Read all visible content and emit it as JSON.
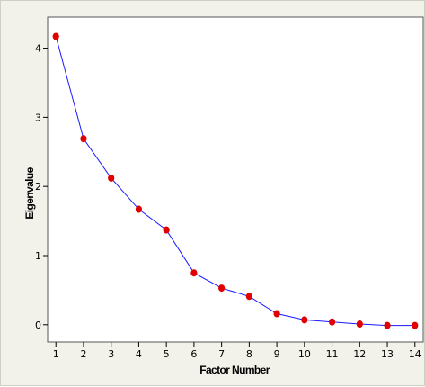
{
  "chart_data": {
    "type": "line",
    "title": "",
    "xlabel": "Factor Number",
    "ylabel": "Eigenvalue",
    "x": [
      1,
      2,
      3,
      4,
      5,
      6,
      7,
      8,
      9,
      10,
      11,
      12,
      13,
      14
    ],
    "series": [
      {
        "values": [
          4.17,
          2.69,
          2.12,
          1.67,
          1.37,
          0.75,
          0.53,
          0.41,
          0.16,
          0.07,
          0.04,
          0.01,
          -0.01,
          -0.01
        ]
      }
    ],
    "xlim": [
      0.7,
      14.3
    ],
    "ylim": [
      -0.25,
      4.45
    ],
    "x_ticks": [
      1,
      2,
      3,
      4,
      5,
      6,
      7,
      8,
      9,
      10,
      11,
      12,
      13,
      14
    ],
    "y_ticks": [
      0,
      1,
      2,
      3,
      4
    ],
    "grid": false,
    "colors": {
      "line": "#1a1aff",
      "marker": "#e00000",
      "axis": "#000000",
      "plot_background": "#ffffff",
      "figure_background": "#f3f2ea"
    }
  }
}
